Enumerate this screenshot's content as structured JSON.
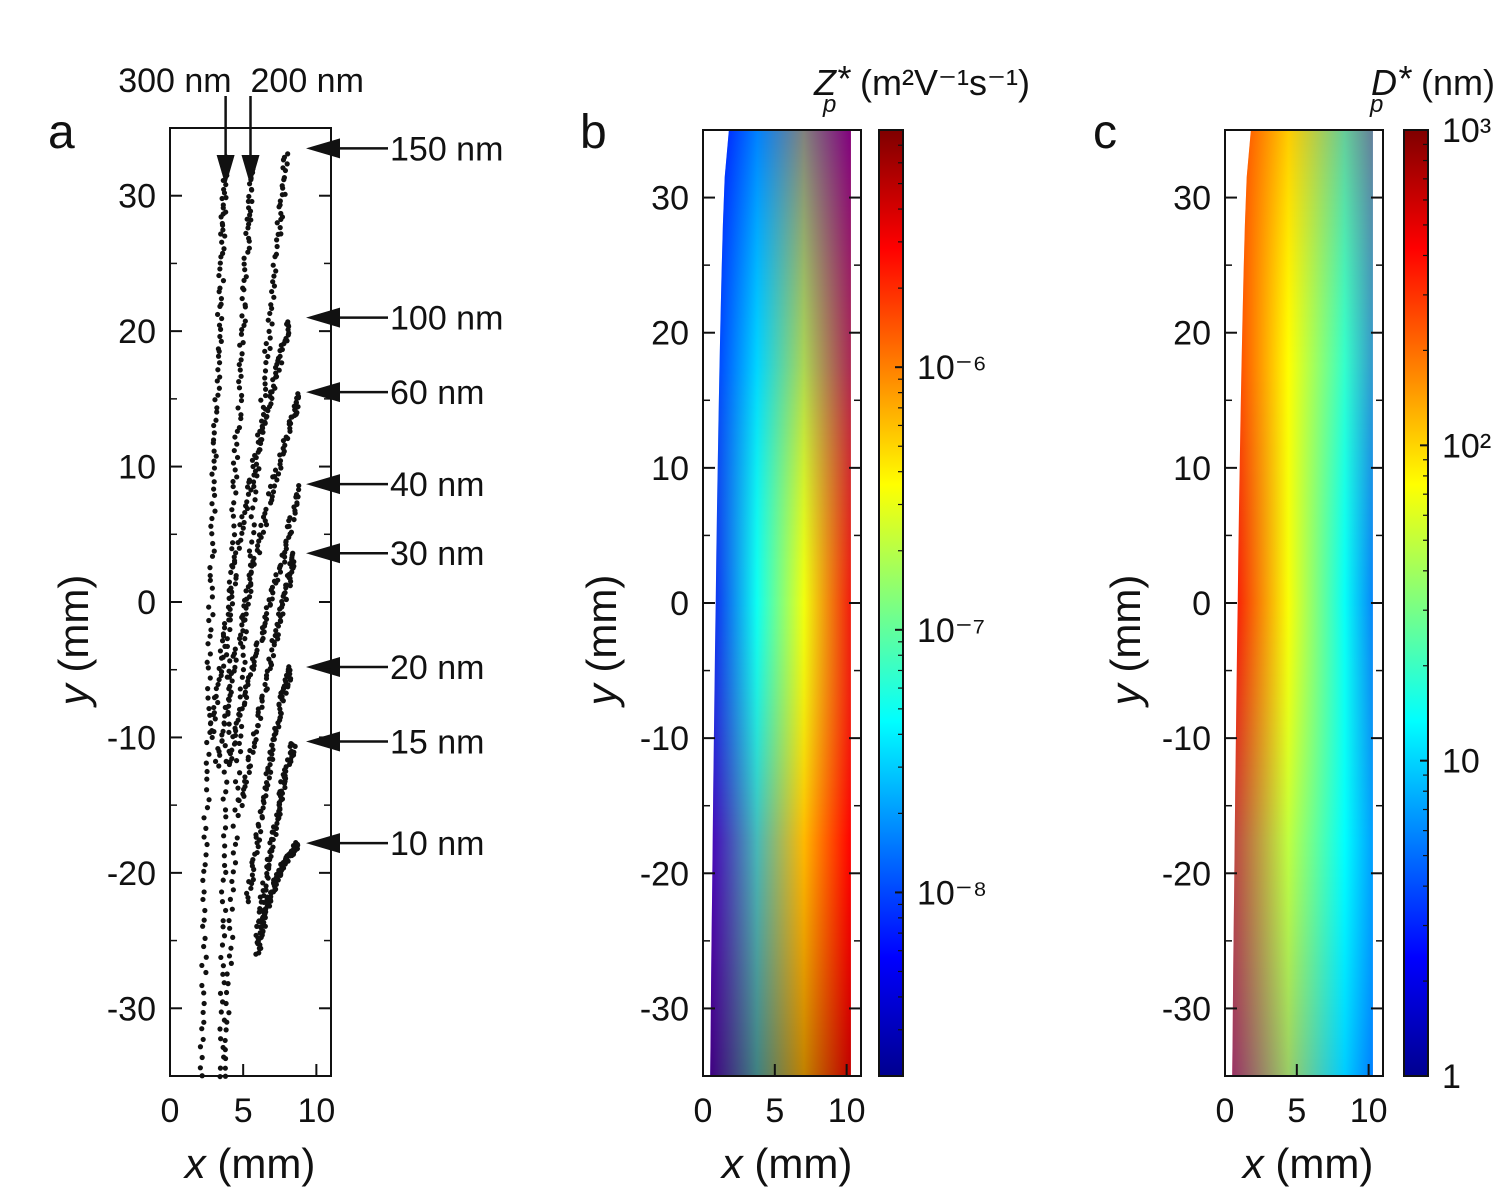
{
  "panels": {
    "a": {
      "letter": "a"
    },
    "b": {
      "letter": "b"
    },
    "c": {
      "letter": "c"
    }
  },
  "colorbars": {
    "b": {
      "title_main": "Z",
      "title_sub": "p",
      "title_star": "*",
      "title_units": "(m²V⁻¹s⁻¹)",
      "scale": "log",
      "range": [
        2e-09,
        8e-06
      ],
      "ticks": [
        {
          "value": 1e-06,
          "label": "10⁻⁶"
        },
        {
          "value": 1e-07,
          "label": "10⁻⁷"
        },
        {
          "value": 1e-08,
          "label": "10⁻⁸"
        }
      ]
    },
    "c": {
      "title_main": "D",
      "title_sub": "p",
      "title_star": "*",
      "title_units": "(nm)",
      "scale": "log",
      "range": [
        1,
        1000
      ],
      "ticks": [
        {
          "value": 1000,
          "label": "10³"
        },
        {
          "value": 100,
          "label": "10²"
        },
        {
          "value": 10,
          "label": "10"
        },
        {
          "value": 1,
          "label": "1"
        }
      ]
    }
  },
  "colormap": [
    "#00008f",
    "#0000ff",
    "#007fff",
    "#00ffff",
    "#7fff7f",
    "#ffff00",
    "#ff7f00",
    "#ff0000",
    "#7f0000"
  ],
  "chart_data": [
    {
      "panel": "a",
      "type": "scatter",
      "xlabel_var": "x",
      "xlabel_units": " (mm)",
      "ylabel_var": "y",
      "ylabel_units": " (mm)",
      "xlim": [
        0,
        11
      ],
      "ylim": [
        -35,
        35
      ],
      "xticks": [
        "0",
        "5",
        "10"
      ],
      "yticks": [
        "30",
        "20",
        "10",
        "0",
        "-10",
        "-20",
        "-30"
      ],
      "marker_color": "#111111",
      "annotations": [
        {
          "label": "300 nm",
          "x": 3.8,
          "y": 35
        },
        {
          "label": "200 nm",
          "x": 5.5,
          "y": 35
        },
        {
          "label": "150 nm",
          "x": 10.8,
          "y": 33.5
        },
        {
          "label": "100 nm",
          "x": 9.5,
          "y": 21
        },
        {
          "label": "60 nm",
          "x": 9.5,
          "y": 15.5
        },
        {
          "label": "40 nm",
          "x": 9.5,
          "y": 8.7
        },
        {
          "label": "30 nm",
          "x": 9.5,
          "y": 3.6
        },
        {
          "label": "20 nm",
          "x": 9.5,
          "y": -4.8
        },
        {
          "label": "15 nm",
          "x": 9.5,
          "y": -10.3
        },
        {
          "label": "10 nm",
          "x": 9.5,
          "y": -17.8
        }
      ],
      "series": [
        {
          "name": "300 nm",
          "x": [
            2.2,
            2.4,
            2.7,
            3.0,
            3.3,
            3.6,
            3.8
          ],
          "y": [
            -35,
            -20,
            -5,
            8,
            18,
            27,
            33
          ]
        },
        {
          "name": "200 nm",
          "x": [
            3.5,
            3.7,
            4.0,
            4.4,
            4.9,
            5.3,
            5.6
          ],
          "y": [
            -35,
            -20,
            -5,
            8,
            18,
            27,
            33
          ]
        },
        {
          "name": "150 nm",
          "x": [
            3.8,
            4.3,
            5.0,
            5.8,
            6.6,
            7.4,
            8.0
          ],
          "y": [
            -35,
            -20,
            -5,
            8,
            18,
            27,
            33.5
          ]
        },
        {
          "name": "100 nm",
          "x": [
            2.8,
            3.7,
            4.8,
            6.1,
            7.3,
            8.2
          ],
          "y": [
            -10,
            -3,
            5,
            12,
            17,
            21
          ]
        },
        {
          "name": "60 nm",
          "x": [
            3.2,
            4.3,
            5.6,
            6.9,
            8.2,
            8.9
          ],
          "y": [
            -12,
            -5,
            2,
            8,
            13,
            15.5
          ]
        },
        {
          "name": "40 nm",
          "x": [
            4.0,
            5.3,
            6.6,
            7.9,
            8.8
          ],
          "y": [
            -12,
            -6,
            -1,
            4,
            8.7
          ]
        },
        {
          "name": "30 nm",
          "x": [
            4.8,
            6.0,
            7.1,
            8.0,
            8.5
          ],
          "y": [
            -15,
            -9,
            -3,
            1,
            3.6
          ]
        },
        {
          "name": "20 nm",
          "x": [
            5.3,
            6.2,
            7.0,
            7.7,
            8.3
          ],
          "y": [
            -22,
            -16,
            -11,
            -7,
            -4.8
          ]
        },
        {
          "name": "15 nm",
          "x": [
            5.9,
            6.6,
            7.3,
            7.8,
            8.5
          ],
          "y": [
            -25,
            -20,
            -16,
            -13,
            -10.3
          ]
        },
        {
          "name": "10 nm",
          "x": [
            6.0,
            6.5,
            7.1,
            7.7,
            8.3,
            8.8
          ],
          "y": [
            -26,
            -23,
            -21,
            -19.5,
            -18.5,
            -17.8
          ]
        }
      ]
    },
    {
      "panel": "b",
      "type": "heatmap",
      "xlabel_var": "x",
      "xlabel_units": " (mm)",
      "ylabel_var": "y",
      "ylabel_units": " (mm)",
      "xlim": [
        0,
        11
      ],
      "ylim": [
        -35,
        35
      ],
      "xticks": [
        "0",
        "5",
        "10"
      ],
      "yticks": [
        "30",
        "20",
        "10",
        "0",
        "-10",
        "-20",
        "-30"
      ],
      "boundary_x_at_top": 1.8,
      "boundary_x_at_bottom": 0.5,
      "domain_x_max": 10.3,
      "color_scale": "log",
      "direction": "increases toward large x and negative y",
      "colorbar": "b"
    },
    {
      "panel": "c",
      "type": "heatmap",
      "xlabel_var": "x",
      "xlabel_units": " (mm)",
      "ylabel_var": "y",
      "ylabel_units": " (mm)",
      "xlim": [
        0,
        11
      ],
      "ylim": [
        -35,
        35
      ],
      "xticks": [
        "0",
        "5",
        "10"
      ],
      "yticks": [
        "30",
        "20",
        "10",
        "0",
        "-10",
        "-20",
        "-30"
      ],
      "boundary_x_at_top": 1.8,
      "boundary_x_at_bottom": 0.5,
      "domain_x_max": 10.3,
      "color_scale": "log",
      "direction": "decreases toward large x and negative y",
      "colorbar": "c"
    }
  ]
}
